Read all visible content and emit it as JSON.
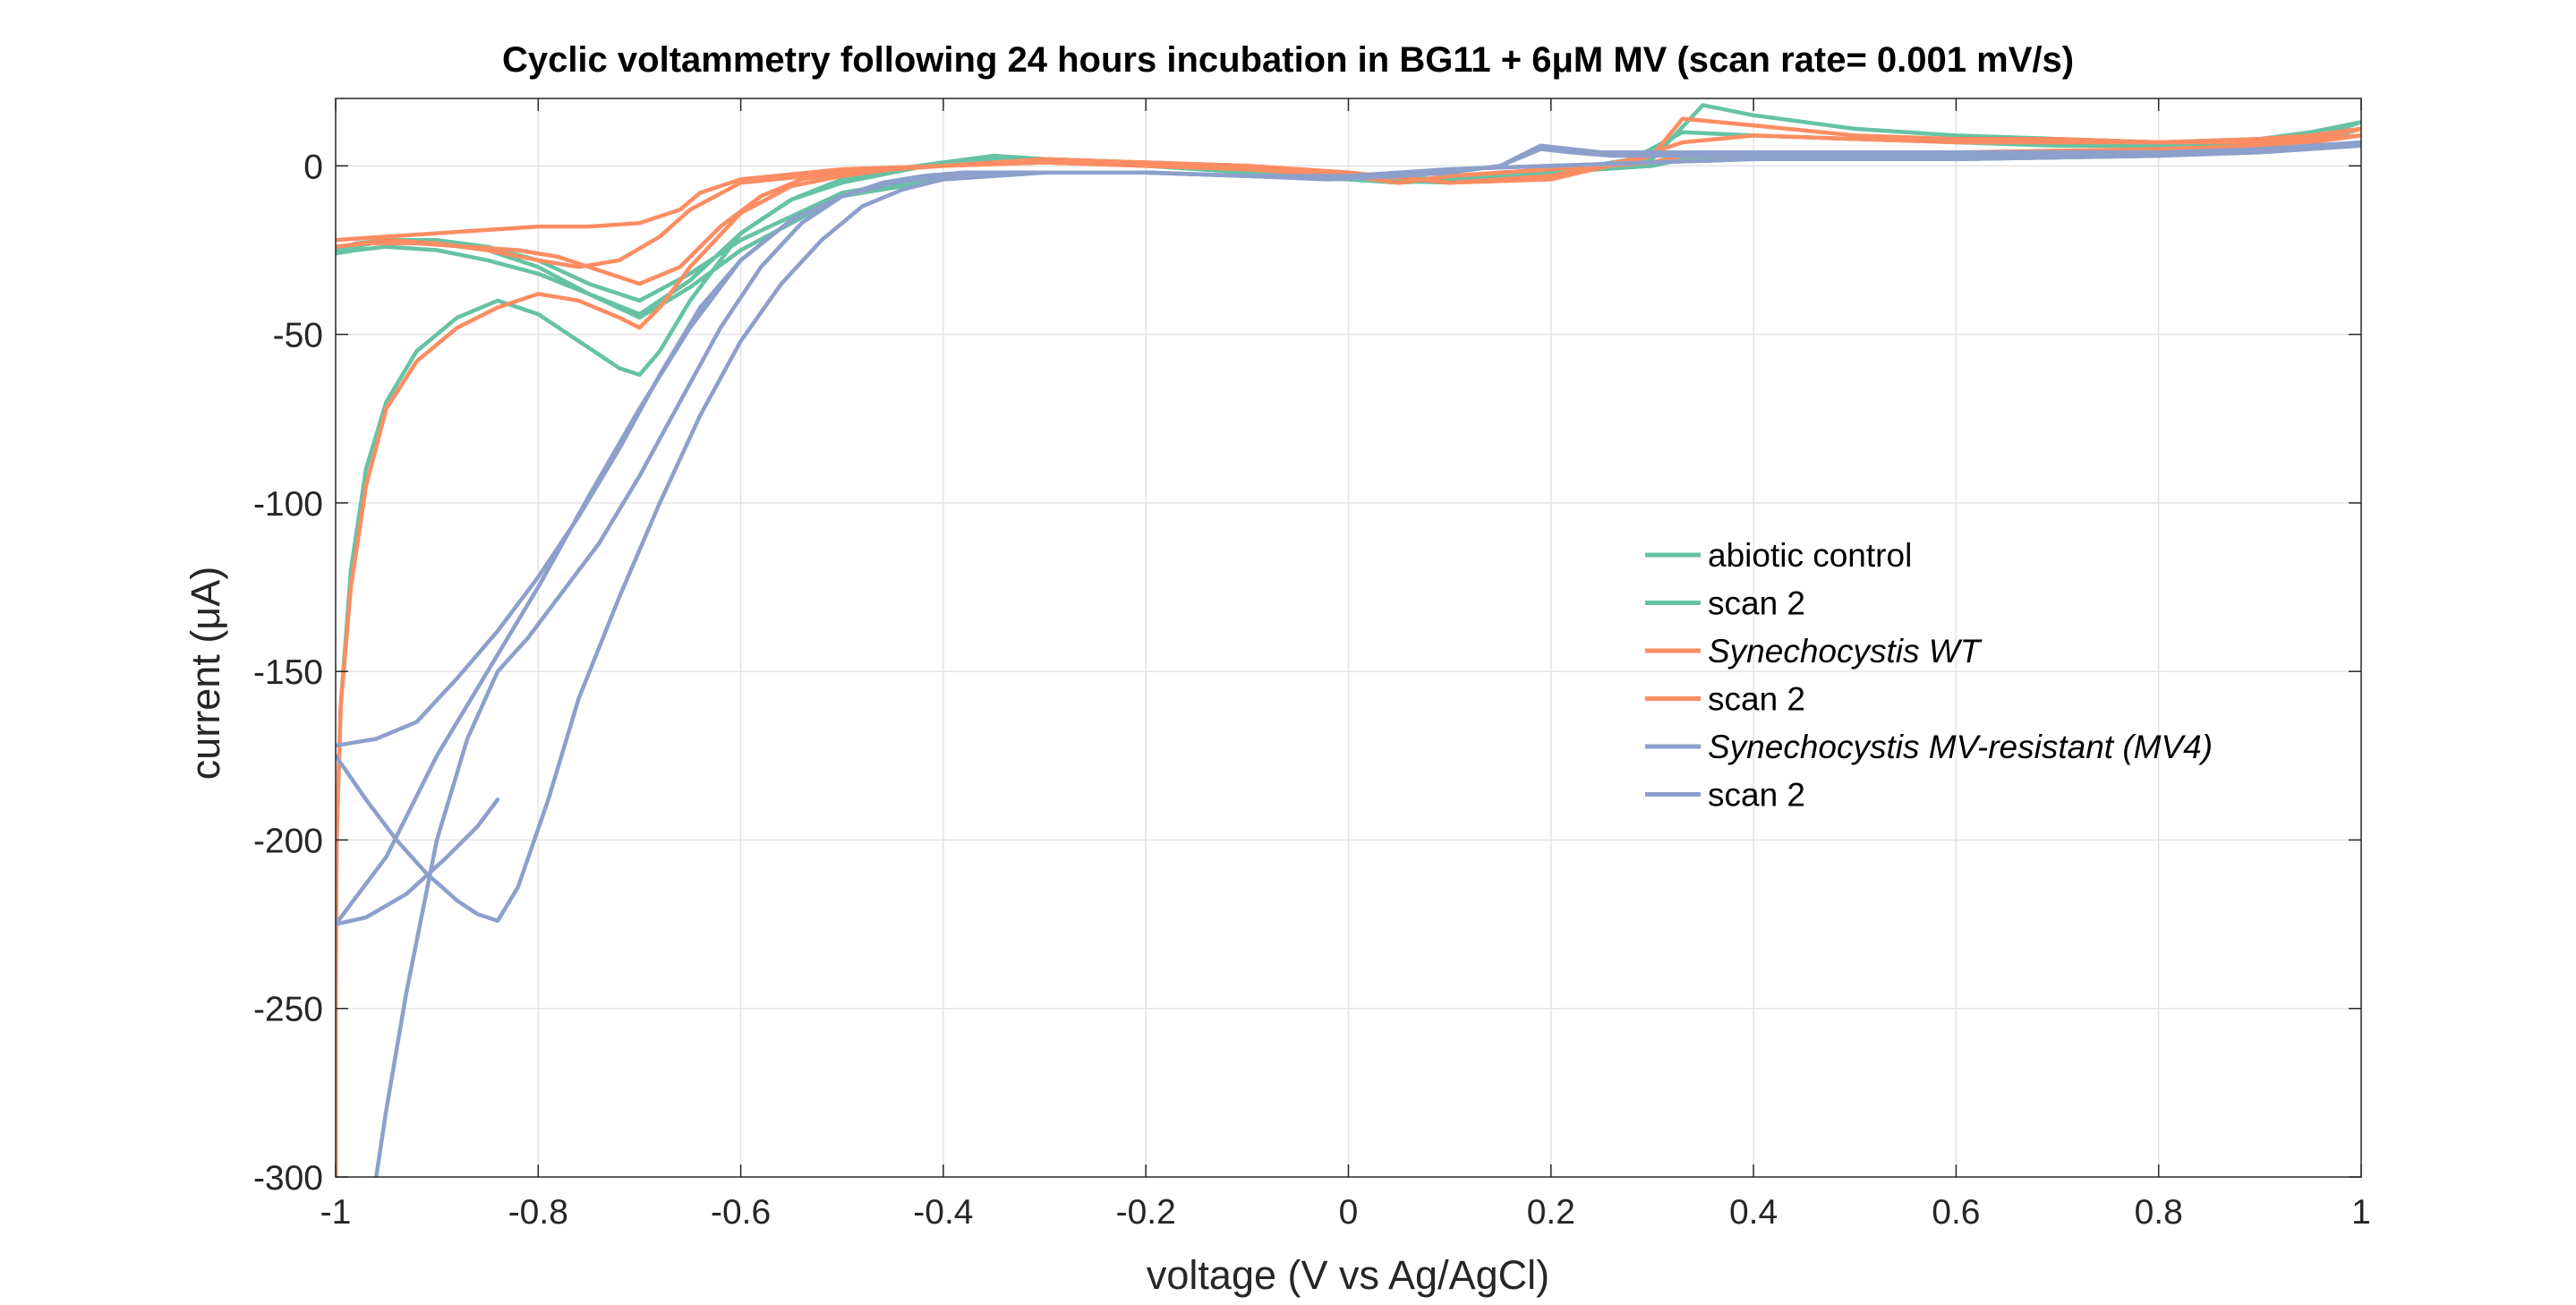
{
  "chart_data": {
    "type": "line",
    "title": "Cyclic voltammetry following 24 hours incubation in BG11 + 6μM MV (scan rate= 0.001 mV/s)",
    "xlabel": "voltage (V vs Ag/AgCl)",
    "ylabel": "current (μA)",
    "xlim": [
      -1,
      1
    ],
    "ylim": [
      -300,
      20
    ],
    "xticks": [
      -1,
      -0.8,
      -0.6,
      -0.4,
      -0.2,
      0,
      0.2,
      0.4,
      0.6,
      0.8,
      1
    ],
    "xtick_labels": [
      "-1",
      "-0.8",
      "-0.6",
      "-0.4",
      "-0.2",
      "0",
      "0.2",
      "0.4",
      "0.6",
      "0.8",
      "1"
    ],
    "yticks": [
      -300,
      -250,
      -200,
      -150,
      -100,
      -50,
      0
    ],
    "ytick_labels": [
      "-300",
      "-250",
      "-200",
      "-150",
      "-100",
      "-50",
      "0"
    ],
    "grid": true,
    "box": true,
    "legend_position": "center-right",
    "series": [
      {
        "name": "abiotic control",
        "italic": false,
        "color": "#66c2a5",
        "x": [
          -1.0,
          -1.0,
          -0.999,
          -0.995,
          -0.985,
          -0.97,
          -0.95,
          -0.92,
          -0.88,
          -0.84,
          -0.8,
          -0.76,
          -0.72,
          -0.7,
          -0.68,
          -0.65,
          -0.6,
          -0.55,
          -0.5,
          -0.45,
          -0.4,
          -0.35,
          -0.3,
          -0.2,
          -0.1,
          0.0,
          0.1,
          0.2,
          0.3,
          0.35,
          0.4,
          0.5,
          0.6,
          0.7,
          0.8,
          0.9,
          0.95,
          1.0,
          0.95,
          0.9,
          0.8,
          0.6,
          0.4,
          0.33,
          0.3,
          0.2,
          0.1,
          0.05,
          0.0,
          -0.1,
          -0.2,
          -0.3,
          -0.4,
          -0.5,
          -0.6,
          -0.65,
          -0.7,
          -0.75,
          -0.8,
          -0.85,
          -0.9,
          -0.95,
          -0.98,
          -1.0
        ],
        "y": [
          -300,
          -250,
          -200,
          -160,
          -120,
          -90,
          -70,
          -55,
          -45,
          -40,
          -44,
          -52,
          -60,
          -62,
          -55,
          -40,
          -20,
          -10,
          -5,
          -2,
          1,
          3,
          2,
          0,
          -2,
          -4,
          -5,
          -3,
          2,
          18,
          15,
          11,
          9,
          8,
          7,
          8,
          10,
          13,
          8,
          5,
          3,
          2,
          2,
          2,
          0,
          -2,
          -4,
          -5,
          -4,
          -3,
          -2,
          -2,
          -4,
          -9,
          -25,
          -36,
          -45,
          -38,
          -30,
          -25,
          -23,
          -22,
          -24,
          -26
        ]
      },
      {
        "name": "scan 2",
        "italic": false,
        "color": "#66c2a5",
        "x": [
          -1.0,
          -0.98,
          -0.95,
          -0.9,
          -0.85,
          -0.8,
          -0.75,
          -0.7,
          -0.65,
          -0.6,
          -0.55,
          -0.5,
          -0.45,
          -0.4,
          -0.35,
          -0.3,
          -0.2,
          -0.1,
          0.0,
          0.1,
          0.2,
          0.28,
          0.33,
          0.4,
          0.5,
          0.6,
          0.7,
          0.8,
          0.9,
          0.95,
          1.0,
          0.95,
          0.9,
          0.8,
          0.6,
          0.4,
          0.33,
          0.3,
          0.2,
          0.1,
          0.05,
          0.0,
          -0.1,
          -0.2,
          -0.3,
          -0.4,
          -0.5,
          -0.6,
          -0.65,
          -0.7,
          -0.75,
          -0.8,
          -0.85,
          -0.9,
          -0.95,
          -0.98,
          -1.0
        ],
        "y": [
          -26,
          -25,
          -24,
          -25,
          -28,
          -32,
          -38,
          -44,
          -34,
          -20,
          -10,
          -4,
          -1,
          1,
          2,
          2,
          1,
          -1,
          -3,
          -4,
          -2,
          2,
          10,
          9,
          8,
          7,
          6,
          6,
          7,
          9,
          11,
          7,
          5,
          3,
          2,
          2,
          2,
          0,
          -2,
          -4,
          -5,
          -4,
          -3,
          -2,
          -2,
          -3,
          -8,
          -22,
          -32,
          -40,
          -35,
          -28,
          -24,
          -22,
          -22,
          -23,
          -25
        ]
      },
      {
        "name": "Synechocystis WT",
        "italic": true,
        "color": "#fc8d62",
        "x": [
          -1.0,
          -1.0,
          -0.999,
          -0.995,
          -0.985,
          -0.97,
          -0.95,
          -0.92,
          -0.88,
          -0.84,
          -0.8,
          -0.76,
          -0.72,
          -0.7,
          -0.68,
          -0.65,
          -0.6,
          -0.55,
          -0.5,
          -0.45,
          -0.4,
          -0.35,
          -0.3,
          -0.2,
          -0.1,
          0.0,
          0.1,
          0.2,
          0.3,
          0.33,
          0.4,
          0.5,
          0.6,
          0.7,
          0.8,
          0.9,
          0.95,
          1.0,
          0.95,
          0.9,
          0.8,
          0.6,
          0.4,
          0.33,
          0.3,
          0.2,
          0.1,
          0.05,
          0.0,
          -0.1,
          -0.2,
          -0.3,
          -0.4,
          -0.5,
          -0.6,
          -0.65,
          -0.68,
          -0.72,
          -0.76,
          -0.8,
          -0.85,
          -0.9,
          -0.95,
          -1.0
        ],
        "y": [
          -300,
          -250,
          -200,
          -160,
          -125,
          -95,
          -72,
          -58,
          -48,
          -42,
          -38,
          -40,
          -45,
          -48,
          -42,
          -30,
          -14,
          -6,
          -3,
          -1,
          0,
          1,
          2,
          1,
          0,
          -2,
          -5,
          -4,
          3,
          14,
          12,
          9,
          8,
          8,
          7,
          8,
          9,
          11,
          8,
          6,
          5,
          4,
          3,
          3,
          1,
          -1,
          -3,
          -5,
          -3,
          -1,
          0,
          1,
          0,
          -2,
          -5,
          -13,
          -21,
          -28,
          -30,
          -28,
          -25,
          -23,
          -22,
          -24
        ]
      },
      {
        "name": "scan 2",
        "italic": false,
        "color": "#fc8d62",
        "x": [
          -1.0,
          -0.97,
          -0.92,
          -0.87,
          -0.82,
          -0.78,
          -0.74,
          -0.7,
          -0.66,
          -0.62,
          -0.58,
          -0.54,
          -0.5,
          -0.45,
          -0.4,
          -0.35,
          -0.3,
          -0.2,
          -0.1,
          0.0,
          0.1,
          0.2,
          0.28,
          0.33,
          0.4,
          0.5,
          0.6,
          0.7,
          0.8,
          0.9,
          0.95,
          1.0,
          0.95,
          0.9,
          0.8,
          0.6,
          0.4,
          0.33,
          0.3,
          0.2,
          0.1,
          0.05,
          0.0,
          -0.1,
          -0.2,
          -0.3,
          -0.4,
          -0.5,
          -0.6,
          -0.64,
          -0.66,
          -0.7,
          -0.75,
          -0.8,
          -0.85,
          -0.9,
          -0.95,
          -1.0
        ],
        "y": [
          -24,
          -23,
          -23,
          -24,
          -25,
          -27,
          -31,
          -35,
          -30,
          -18,
          -9,
          -4,
          -2,
          -1,
          0,
          1,
          1,
          1,
          0,
          -2,
          -5,
          -3,
          2,
          7,
          9,
          8,
          7,
          7,
          7,
          7,
          8,
          9,
          7,
          5,
          4,
          3,
          3,
          3,
          1,
          -1,
          -3,
          -5,
          -3,
          -1,
          0,
          1,
          0,
          -1,
          -4,
          -8,
          -13,
          -17,
          -18,
          -18,
          -19,
          -20,
          -21,
          -22
        ]
      },
      {
        "name": "Synechocystis MV-resistant (MV4)",
        "italic": true,
        "color": "#8da0cb",
        "x": [
          -0.96,
          -0.95,
          -0.93,
          -0.9,
          -0.87,
          -0.84,
          -0.81,
          -0.78,
          -0.74,
          -0.7,
          -0.66,
          -0.62,
          -0.58,
          -0.54,
          -0.5,
          -0.46,
          -0.42,
          -0.38,
          -0.34,
          -0.3,
          -0.2,
          -0.1,
          -0.02,
          0.05,
          0.1,
          0.15,
          0.19,
          0.22,
          0.25,
          0.3,
          0.4,
          0.5,
          0.6,
          0.7,
          0.8,
          0.9,
          0.95,
          1.0,
          0.95,
          0.9,
          0.8,
          0.6,
          0.4,
          0.3,
          0.2,
          0.1,
          0.0,
          -0.05,
          -0.1,
          -0.2,
          -0.3,
          -0.4,
          -0.45,
          -0.5,
          -0.55,
          -0.6,
          -0.65,
          -0.7,
          -0.75,
          -0.8,
          -0.85,
          -0.9,
          -0.95,
          -1.0,
          -0.97,
          -0.93,
          -0.89,
          -0.86,
          -0.84
        ],
        "y": [
          -300,
          -280,
          -245,
          -200,
          -170,
          -150,
          -140,
          -128,
          -112,
          -92,
          -70,
          -48,
          -30,
          -17,
          -9,
          -5,
          -3,
          -2,
          -2,
          -2,
          -2,
          -3,
          -4,
          -3,
          -2,
          0,
          6,
          5,
          4,
          4,
          4,
          4,
          4,
          4,
          4,
          5,
          6,
          7,
          6,
          5,
          4,
          3,
          2,
          1,
          0,
          -1,
          -3,
          -3,
          -3,
          -2,
          -2,
          -3,
          -5,
          -9,
          -16,
          -28,
          -48,
          -72,
          -98,
          -125,
          -150,
          -175,
          -205,
          -225,
          -223,
          -216,
          -205,
          -196,
          -188
        ]
      },
      {
        "name": "scan 2",
        "italic": false,
        "color": "#8da0cb",
        "x": [
          -1.0,
          -0.97,
          -0.94,
          -0.91,
          -0.88,
          -0.86,
          -0.84,
          -0.82,
          -0.79,
          -0.76,
          -0.72,
          -0.68,
          -0.64,
          -0.6,
          -0.56,
          -0.52,
          -0.48,
          -0.44,
          -0.4,
          -0.35,
          -0.3,
          -0.2,
          -0.1,
          -0.02,
          0.05,
          0.1,
          0.15,
          0.19,
          0.22,
          0.26,
          0.3,
          0.4,
          0.5,
          0.6,
          0.7,
          0.8,
          0.9,
          0.95,
          1.0,
          0.95,
          0.9,
          0.8,
          0.6,
          0.4,
          0.3,
          0.2,
          0.1,
          0.0,
          -0.05,
          -0.1,
          -0.2,
          -0.3,
          -0.4,
          -0.45,
          -0.5,
          -0.55,
          -0.6,
          -0.64,
          -0.68,
          -0.72,
          -0.76,
          -0.8,
          -0.84,
          -0.88,
          -0.92,
          -0.96,
          -1.0
        ],
        "y": [
          -175,
          -188,
          -200,
          -210,
          -218,
          -222,
          -224,
          -214,
          -188,
          -158,
          -128,
          -100,
          -74,
          -52,
          -35,
          -22,
          -12,
          -7,
          -4,
          -3,
          -2,
          -2,
          -3,
          -4,
          -3,
          -2,
          0,
          5,
          4,
          3,
          3,
          3,
          3,
          3,
          3,
          3,
          4,
          5,
          6,
          5,
          4,
          3,
          2,
          2,
          1,
          0,
          -1,
          -3,
          -3,
          -3,
          -2,
          -2,
          -3,
          -5,
          -9,
          -16,
          -28,
          -42,
          -62,
          -84,
          -104,
          -122,
          -138,
          -152,
          -165,
          -170,
          -172
        ]
      }
    ]
  }
}
